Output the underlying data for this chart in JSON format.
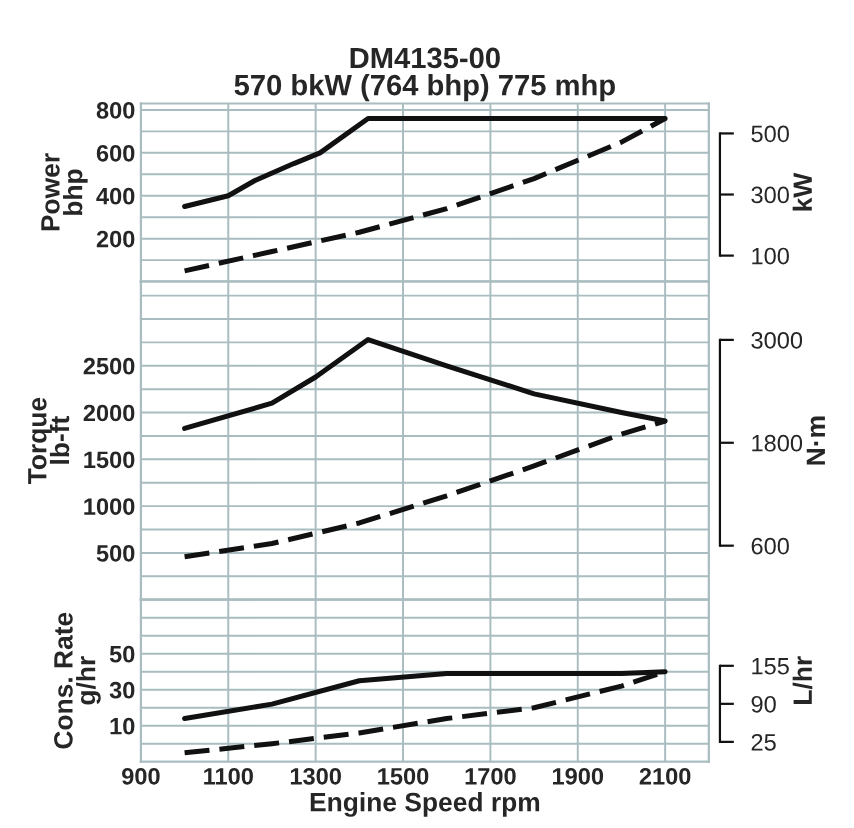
{
  "chart_data": [
    {
      "type": "line",
      "title": "DM4135-00\n570 bkW (764 bhp) 775 mhp",
      "ylabel": "Power\nbhp",
      "y2label": "kW",
      "xlim": [
        900,
        2200
      ],
      "xticks": [
        900,
        1100,
        1300,
        1500,
        1700,
        1900,
        2100
      ],
      "ylim": [
        0,
        830
      ],
      "yticks": [
        200,
        400,
        600,
        800
      ],
      "y2lim": [
        15,
        598
      ],
      "y2ticks": [
        100,
        300,
        500
      ],
      "tick_labels": "y",
      "grid": true,
      "marker": "none",
      "series": [
        {
          "color": "#111111",
          "line_style": "solid",
          "x": [
            1000,
            1100,
            1160,
            1250,
            1310,
            1420,
            1600,
            1800,
            2000,
            2100
          ],
          "values": [
            350,
            400,
            470,
            550,
            600,
            760,
            760,
            760,
            760,
            760
          ]
        },
        {
          "color": "#111111",
          "line_style": "dashed",
          "x": [
            1000,
            1200,
            1400,
            1600,
            1800,
            2000,
            2100
          ],
          "values": [
            50,
            140,
            230,
            340,
            480,
            650,
            760
          ]
        }
      ]
    },
    {
      "type": "line",
      "ylabel": "Torque\nlb-ft",
      "y2label": "N·m",
      "xlim": [
        900,
        2200
      ],
      "xticks": [
        900,
        1100,
        1300,
        1500,
        1700,
        1900,
        2100
      ],
      "ylim": [
        0,
        3400
      ],
      "yticks": [
        500,
        1000,
        1500,
        2000,
        2500
      ],
      "y2lim": [
        -30,
        3680
      ],
      "y2ticks": [
        600,
        1800,
        3000
      ],
      "tick_labels": "y",
      "grid": true,
      "marker": "none",
      "series": [
        {
          "color": "#111111",
          "line_style": "solid",
          "x": [
            1000,
            1200,
            1300,
            1420,
            1600,
            1800,
            2000,
            2100
          ],
          "values": [
            1830,
            2100,
            2380,
            2780,
            2500,
            2200,
            2000,
            1910
          ]
        },
        {
          "color": "#111111",
          "line_style": "dashed",
          "x": [
            1000,
            1200,
            1400,
            1600,
            1800,
            2000,
            2100
          ],
          "values": [
            460,
            600,
            820,
            1110,
            1430,
            1770,
            1910
          ]
        }
      ]
    },
    {
      "type": "line",
      "ylabel": "Cons. Rate\ng/hr",
      "y2label": "L/hr",
      "xlabel": "Engine Speed rpm",
      "xlim": [
        900,
        2200
      ],
      "xticks": [
        900,
        1100,
        1300,
        1500,
        1700,
        1900,
        2100
      ],
      "ylim": [
        -10,
        80
      ],
      "yticks": [
        10,
        30,
        50
      ],
      "y2lim": [
        -9,
        268
      ],
      "y2ticks": [
        25,
        90,
        155
      ],
      "grid": true,
      "marker": "none",
      "series": [
        {
          "color": "#111111",
          "line_style": "solid",
          "x": [
            1000,
            1200,
            1400,
            1600,
            1800,
            2000,
            2100
          ],
          "values": [
            14,
            22,
            35,
            39,
            39,
            39,
            40
          ]
        },
        {
          "color": "#111111",
          "line_style": "dashed",
          "x": [
            1000,
            1200,
            1400,
            1600,
            1800,
            2000,
            2100
          ],
          "values": [
            -5,
            0,
            6,
            14,
            20,
            32,
            40
          ]
        }
      ]
    }
  ]
}
